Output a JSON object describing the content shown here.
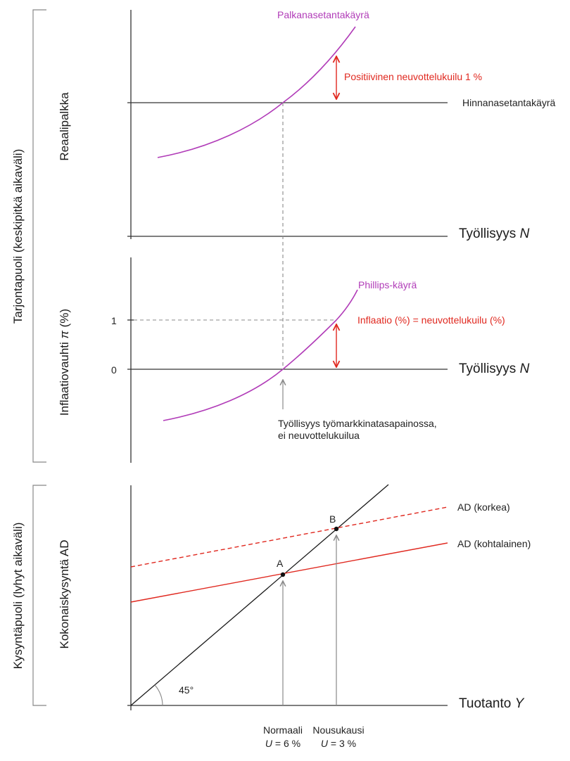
{
  "colors": {
    "purple": "#b13cb8",
    "red": "#e0281f",
    "axis": "#333333",
    "grey": "#8a8a8a"
  },
  "brackets": {
    "supply": "Tarjontapuoli (keskipitkä aikaväli)",
    "demand": "Kysyntäpuoli (lyhyt aikaväli)"
  },
  "panel_wage": {
    "ylabel": "Reaalipalkka",
    "xlabel": "Työllisyys",
    "xlabel_var": "N",
    "wage_curve": "Palkanasetantakäyrä",
    "price_curve": "Hinnanasetantakäyrä",
    "gap_label": "Positiivinen neuvottelukuilu 1 %"
  },
  "panel_phillips": {
    "ylabel_prefix": "Inflaatiovauhti ",
    "ylabel_var": "π",
    "ylabel_suffix": " (%)",
    "xlabel": "Työllisyys",
    "xlabel_var": "N",
    "curve": "Phillips-käyrä",
    "tick_1": "1",
    "tick_0": "0",
    "inflation_label": "Inflaatio (%) = neuvottelukuilu (%)",
    "eq_label_line1": "Työllisyys työmarkkinatasapainossa,",
    "eq_label_line2": "ei neuvottelukuilua"
  },
  "panel_ad": {
    "ylabel": "Kokonaiskysyntä AD",
    "xlabel": "Tuotanto",
    "xlabel_var": "Y",
    "ad_high": "AD (korkea)",
    "ad_moderate": "AD (kohtalainen)",
    "point_a": "A",
    "point_b": "B",
    "angle": "45°",
    "normal_label": "Normaali",
    "normal_u_var": "U",
    "normal_u_value": " = 6 %",
    "boom_label": "Nousukausi",
    "boom_u_var": "U",
    "boom_u_value": " = 3 %"
  }
}
